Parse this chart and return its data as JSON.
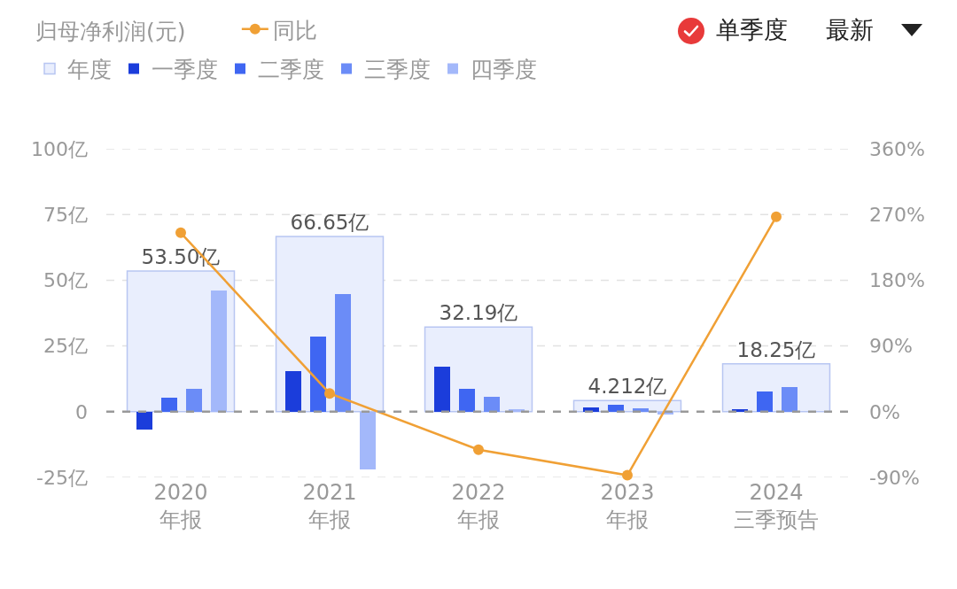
{
  "chart_data": {
    "type": "bar",
    "title": "归母净利润(元)",
    "categories": [
      "2020\n年报",
      "2021\n年报",
      "2022\n年报",
      "2023\n年报",
      "2024\n三季预告"
    ],
    "series": [
      {
        "name": "年度",
        "color": "#e9eefd",
        "values": [
          53.5,
          66.65,
          32.19,
          4.212,
          18.25
        ],
        "value_labels": [
          "53.50亿",
          "66.65亿",
          "32.19亿",
          "4.212亿",
          "18.25亿"
        ]
      },
      {
        "name": "一季度",
        "color": "#1b3ddb",
        "values": [
          -6.7,
          15.4,
          17.1,
          1.6,
          1.0
        ]
      },
      {
        "name": "二季度",
        "color": "#3f66f2",
        "values": [
          5.4,
          28.5,
          8.7,
          2.6,
          7.7
        ]
      },
      {
        "name": "三季度",
        "color": "#6b8cf7",
        "values": [
          8.7,
          44.6,
          5.5,
          1.2,
          9.4
        ]
      },
      {
        "name": "四季度",
        "color": "#a3b8fa",
        "values": [
          46.1,
          -21.8,
          0.9,
          -1.2,
          null
        ]
      },
      {
        "name": "同比",
        "type": "line",
        "axis": "y2",
        "color": "#f0a035",
        "values": [
          245,
          25,
          -52,
          -87,
          267
        ]
      }
    ],
    "ylim": [
      -25,
      100
    ],
    "yticks": [
      {
        "value": -25,
        "label": "-25亿"
      },
      {
        "value": 0,
        "label": "0"
      },
      {
        "value": 25,
        "label": "25亿"
      },
      {
        "value": 50,
        "label": "50亿"
      },
      {
        "value": 75,
        "label": "75亿"
      },
      {
        "value": 100,
        "label": "100亿"
      }
    ],
    "y2lim": [
      -90,
      360
    ],
    "y2ticks": [
      {
        "value": -90,
        "label": "-90%"
      },
      {
        "value": 0,
        "label": "0%"
      },
      {
        "value": 90,
        "label": "90%"
      },
      {
        "value": 180,
        "label": "180%"
      },
      {
        "value": 270,
        "label": "270%"
      },
      {
        "value": 360,
        "label": "360%"
      }
    ],
    "grid": "y",
    "legend": "top left",
    "marker": "circle",
    "ref_lines": [
      {
        "axis": "y",
        "value": 0,
        "line_style": "dashed",
        "color": "#999999"
      }
    ],
    "annotations": [
      "单季度",
      "最新"
    ]
  }
}
